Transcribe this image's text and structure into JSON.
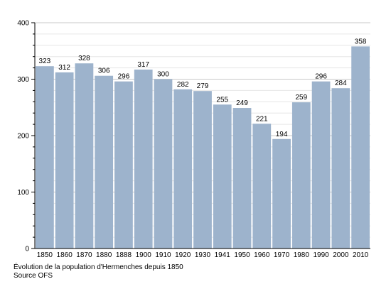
{
  "chart_data": {
    "type": "bar",
    "title": "",
    "xlabel": "",
    "ylabel": "",
    "categories": [
      "1850",
      "1860",
      "1870",
      "1880",
      "1888",
      "1900",
      "1910",
      "1920",
      "1930",
      "1941",
      "1950",
      "1960",
      "1970",
      "1980",
      "1990",
      "2000",
      "2010"
    ],
    "values": [
      323,
      312,
      328,
      306,
      296,
      317,
      300,
      282,
      279,
      255,
      249,
      221,
      194,
      259,
      296,
      284,
      358
    ],
    "data_labels": [
      "323",
      "312",
      "328",
      "306",
      "296",
      "317",
      "300",
      "282",
      "279",
      "255",
      "249",
      "221",
      "194",
      "259",
      "296",
      "284",
      "358"
    ],
    "ylim": [
      0,
      400
    ],
    "yticks": [
      "0",
      "100",
      "200",
      "300",
      "400"
    ],
    "grid": true,
    "legend": "none",
    "bar_color": "#9db3cc"
  },
  "captions": {
    "line1": "Évolution de la population d'Hermenches depuis 1850",
    "line2": "Source OFS"
  }
}
